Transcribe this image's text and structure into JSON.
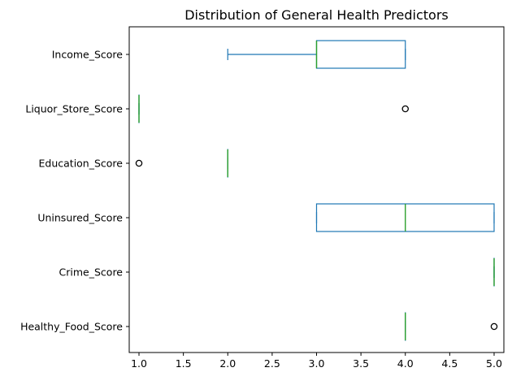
{
  "chart_data": {
    "type": "boxplot",
    "orientation": "horizontal",
    "title": "Distribution of General Health Predictors",
    "xlabel": "",
    "ylabel": "",
    "xlim": [
      0.89,
      5.11
    ],
    "x_ticks": [
      {
        "value": 1.0,
        "label": "1.0"
      },
      {
        "value": 1.5,
        "label": "1.5"
      },
      {
        "value": 2.0,
        "label": "2.0"
      },
      {
        "value": 2.5,
        "label": "2.5"
      },
      {
        "value": 3.0,
        "label": "3.0"
      },
      {
        "value": 3.5,
        "label": "3.5"
      },
      {
        "value": 4.0,
        "label": "4.0"
      },
      {
        "value": 4.5,
        "label": "4.5"
      },
      {
        "value": 5.0,
        "label": "5.0"
      }
    ],
    "grid": false,
    "colors": {
      "box": "#1f77b4",
      "median": "#2ca02c",
      "flier": "#000000",
      "axes": "#000000"
    },
    "categories": [
      "Income_Score",
      "Liquor_Store_Score",
      "Education_Score",
      "Uninsured_Score",
      "Crime_Score",
      "Healthy_Food_Score"
    ],
    "boxes": [
      {
        "name": "Income_Score",
        "whislo": 2,
        "q1": 3,
        "med": 3,
        "q3": 4,
        "whishi": 4,
        "fliers": []
      },
      {
        "name": "Liquor_Store_Score",
        "whislo": 1,
        "q1": 1,
        "med": 1,
        "q3": 1,
        "whishi": 1,
        "fliers": [
          4
        ]
      },
      {
        "name": "Education_Score",
        "whislo": 2,
        "q1": 2,
        "med": 2,
        "q3": 2,
        "whishi": 2,
        "fliers": [
          1
        ]
      },
      {
        "name": "Uninsured_Score",
        "whislo": 3,
        "q1": 3,
        "med": 4,
        "q3": 5,
        "whishi": 5,
        "fliers": []
      },
      {
        "name": "Crime_Score",
        "whislo": 5,
        "q1": 5,
        "med": 5,
        "q3": 5,
        "whishi": 5,
        "fliers": []
      },
      {
        "name": "Healthy_Food_Score",
        "whislo": 4,
        "q1": 4,
        "med": 4,
        "q3": 4,
        "whishi": 4,
        "fliers": [
          5
        ]
      }
    ]
  }
}
